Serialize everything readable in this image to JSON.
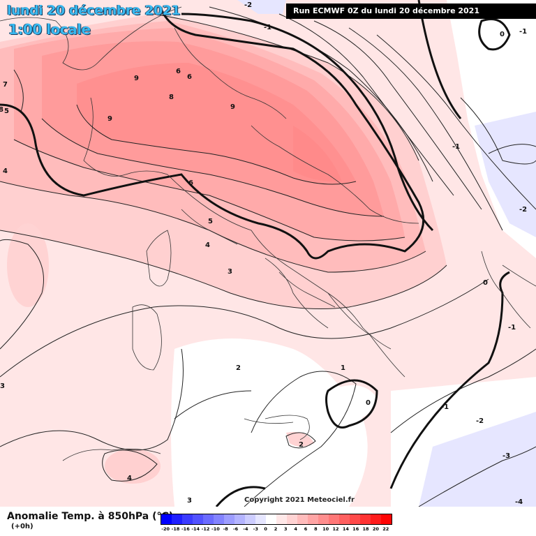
{
  "header": {
    "date": "lundi 20 décembre 2021",
    "time": "1:00 locale",
    "run": "Run ECMWF 0Z du lundi 20 décembre 2021"
  },
  "copyright": "Copyright 2021 Meteociel.fr",
  "footer": {
    "parameter": "Anomalie Temp. à 850hPa (°C)",
    "offset": "(+0h)"
  },
  "legend": {
    "labels": [
      "-20",
      "-18",
      "-16",
      "-14",
      "-12",
      "-10",
      "-8",
      "-6",
      "-4",
      "-3",
      "0",
      "2",
      "3",
      "4",
      "6",
      "8",
      "10",
      "12",
      "14",
      "16",
      "18",
      "20",
      "22"
    ],
    "colors": [
      "#0000ff",
      "#1f1fff",
      "#3b3bff",
      "#5252ff",
      "#6b6bff",
      "#8383ff",
      "#9d9dff",
      "#b4b4ff",
      "#cdcdff",
      "#e6e6ff",
      "#ffffff",
      "#ffe8e8",
      "#ffd3d3",
      "#ffbcbc",
      "#ffa5a5",
      "#ff8e8e",
      "#ff7777",
      "#ff6060",
      "#ff4a4a",
      "#ff3333",
      "#ff1c1c",
      "#ff0505"
    ]
  },
  "contour_labels": [
    "-2",
    "-1",
    "0",
    "-1",
    "7",
    "6",
    "9",
    "6",
    "8",
    "9",
    "9",
    "8",
    "5",
    "4",
    "6",
    "5",
    "4",
    "3",
    "-1",
    "-2",
    "0",
    "-1",
    "3",
    "2",
    "1",
    "0",
    "-1",
    "-2",
    "2",
    "-3",
    "-4",
    "4",
    "3"
  ],
  "colors": {
    "title": "#39b8ef",
    "run_box_bg": "#000000"
  }
}
